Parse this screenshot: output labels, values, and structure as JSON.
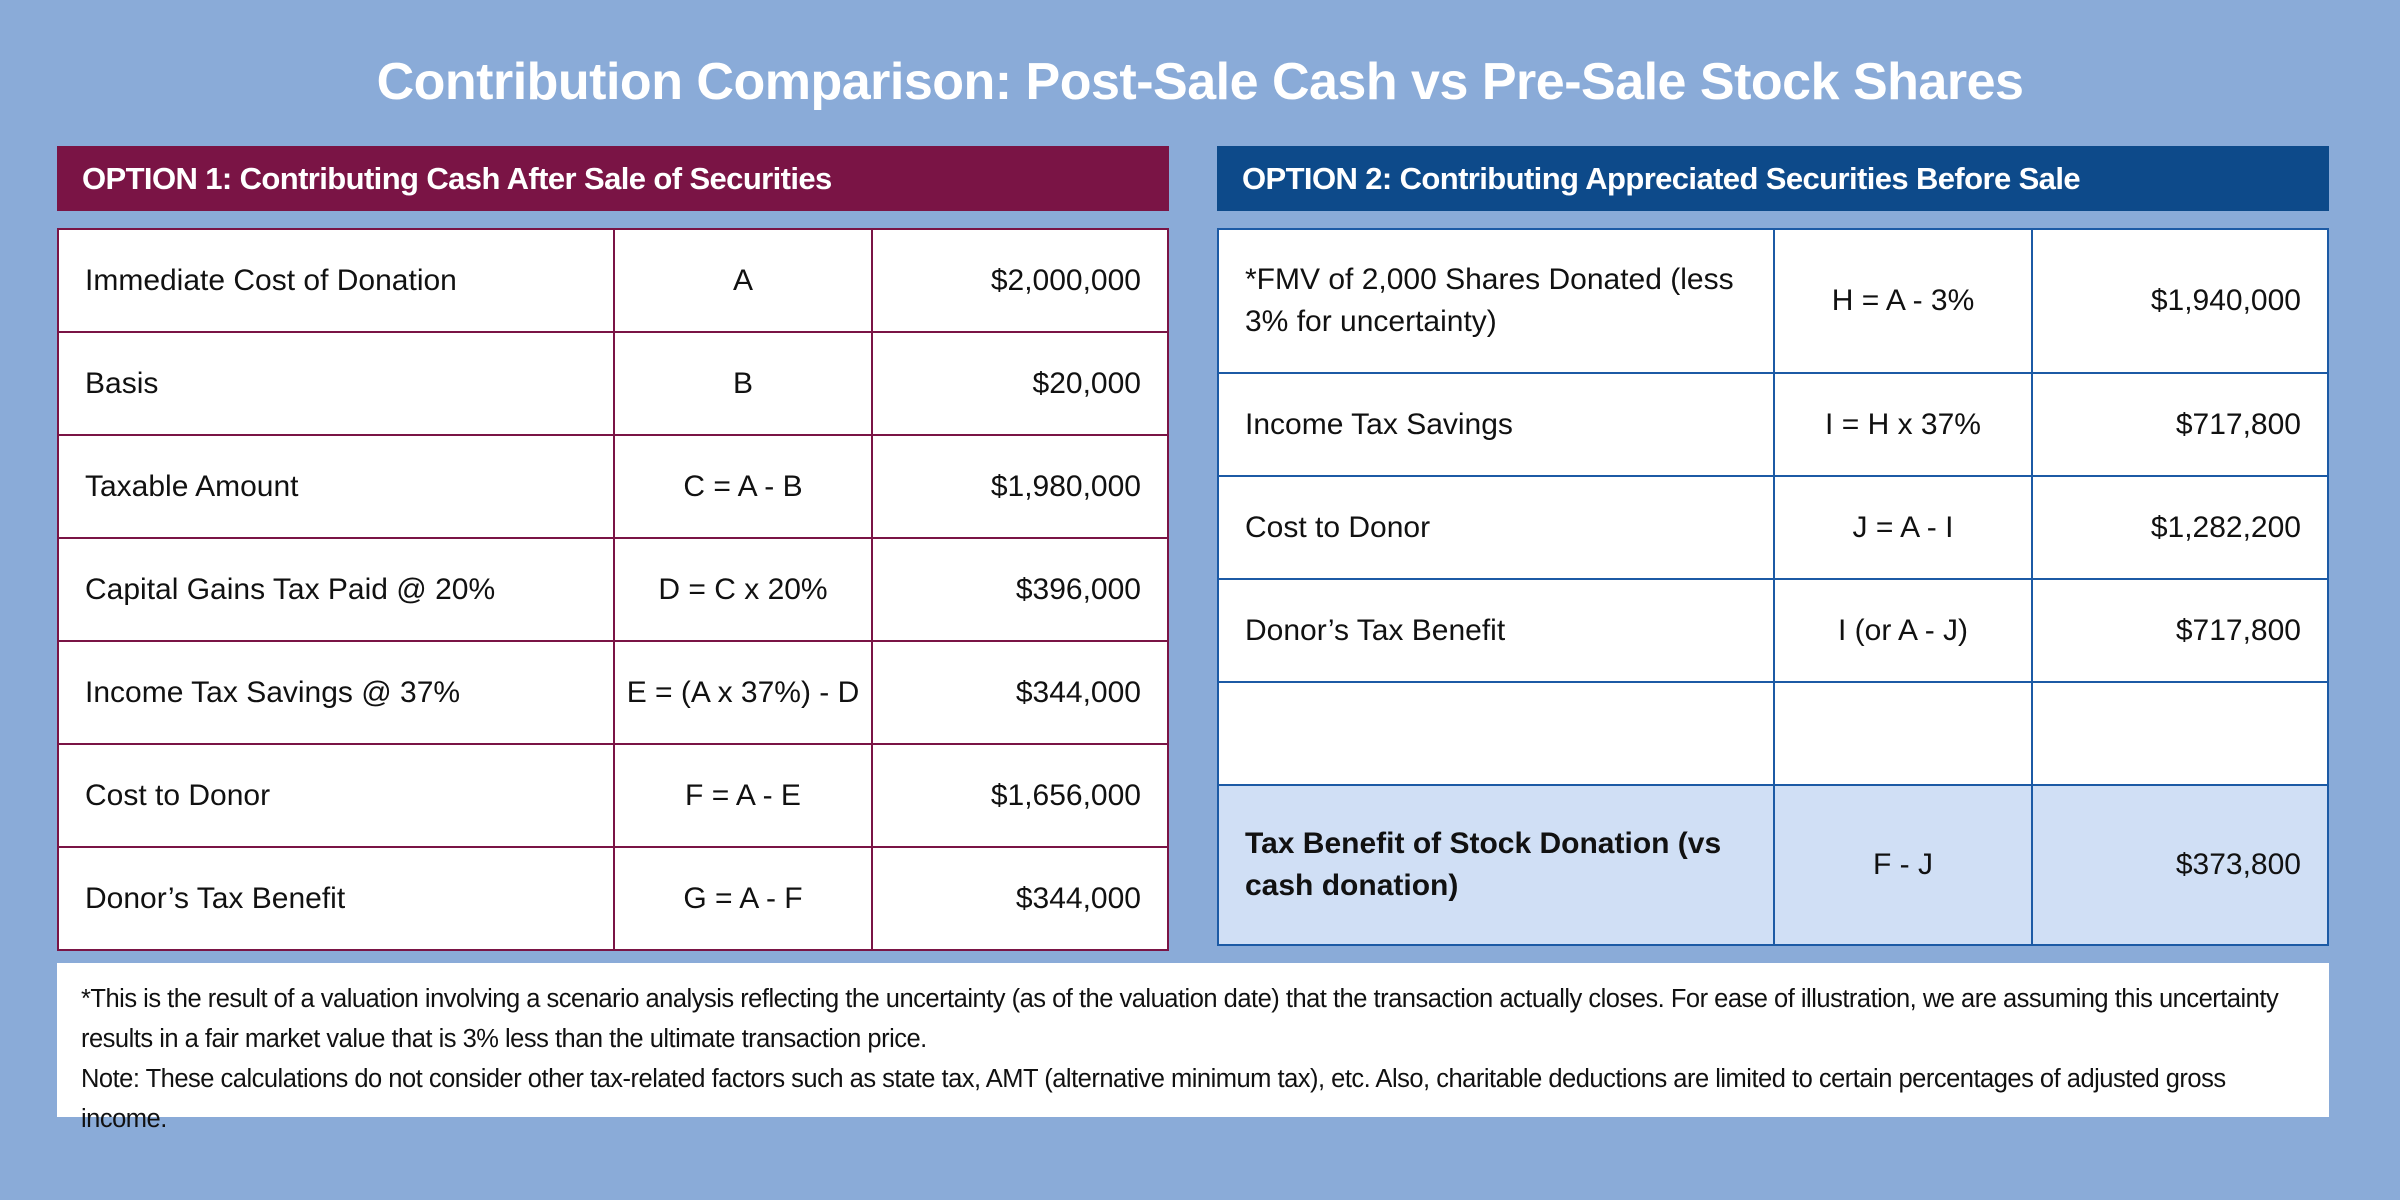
{
  "title": "Contribution Comparison: Post-Sale Cash vs Pre-Sale Stock Shares",
  "option1": {
    "header": "OPTION 1:  Contributing Cash After Sale of Securities",
    "rows": [
      {
        "label": "Immediate Cost of Donation",
        "formula": "A",
        "value": "$2,000,000"
      },
      {
        "label": "Basis",
        "formula": "B",
        "value": "$20,000"
      },
      {
        "label": "Taxable Amount",
        "formula": "C = A - B",
        "value": "$1,980,000"
      },
      {
        "label": "Capital Gains Tax Paid @ 20%",
        "formula": "D = C x 20%",
        "value": "$396,000"
      },
      {
        "label": "Income Tax Savings @ 37%",
        "formula": "E = (A x 37%) - D",
        "value": "$344,000"
      },
      {
        "label": "Cost to Donor",
        "formula": "F = A - E",
        "value": "$1,656,000"
      },
      {
        "label": "Donor’s Tax Benefit",
        "formula": "G = A - F",
        "value": "$344,000"
      }
    ]
  },
  "option2": {
    "header": "OPTION 2:  Contributing Appreciated Securities Before Sale",
    "rows": [
      {
        "label": "*FMV of 2,000 Shares Donated (less 3% for uncertainty)",
        "formula": "H = A - 3%",
        "value": "$1,940,000"
      },
      {
        "label": "Income Tax Savings",
        "formula": "I = H x 37%",
        "value": "$717,800"
      },
      {
        "label": "Cost to Donor",
        "formula": "J = A - I",
        "value": "$1,282,200"
      },
      {
        "label": "Donor’s Tax Benefit",
        "formula": "I (or A - J)",
        "value": "$717,800"
      },
      {
        "label": "",
        "formula": "",
        "value": ""
      },
      {
        "label": "Tax Benefit of Stock Donation (vs cash donation)",
        "formula": "F - J",
        "value": "$373,800"
      }
    ]
  },
  "notes": {
    "footnote": "*This is the result of a valuation involving a scenario analysis reflecting the uncertainty (as of the valuation date) that the transaction actually closes. For ease of illustration, we are assuming this uncertainty results in a fair market value that is 3% less than the ultimate transaction price.",
    "note": "Note: These calculations do not consider other tax-related factors such as state tax, AMT (alternative minimum tax), etc. Also, charitable deductions are limited to certain percentages of adjusted gross income."
  }
}
